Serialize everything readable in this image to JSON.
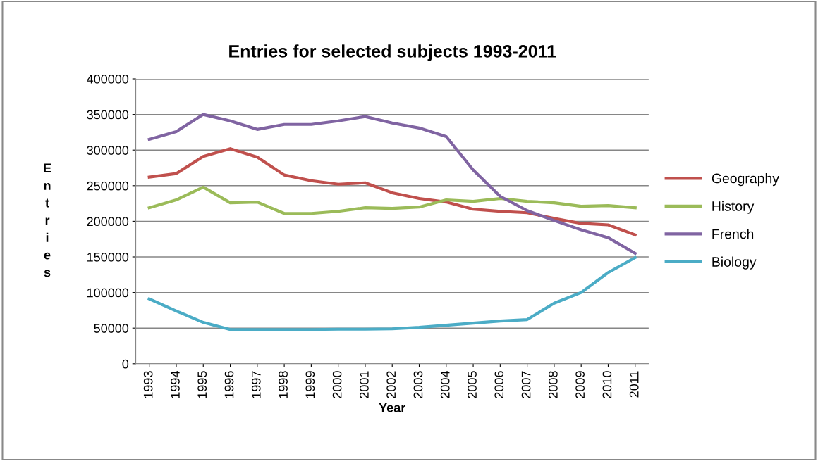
{
  "chart_data": {
    "type": "line",
    "title": "Entries for selected subjects 1993-2011",
    "xlabel": "Year",
    "ylabel": "Entries",
    "categories": [
      "1993",
      "1994",
      "1995",
      "1996",
      "1997",
      "1998",
      "1999",
      "2000",
      "2001",
      "2002",
      "2003",
      "2004",
      "2005",
      "2006",
      "2007",
      "2008",
      "2009",
      "2010",
      "2011"
    ],
    "series": [
      {
        "name": "Geography",
        "color": "#c0504d",
        "values": [
          262000,
          267000,
          291000,
          302000,
          290000,
          265000,
          257000,
          252000,
          254000,
          240000,
          232000,
          227000,
          217000,
          214000,
          212000,
          204000,
          197000,
          195000,
          181000
        ]
      },
      {
        "name": "History",
        "color": "#9bbb59",
        "values": [
          219000,
          230000,
          248000,
          226000,
          227000,
          211000,
          211000,
          214000,
          219000,
          218000,
          220000,
          230000,
          228000,
          232000,
          228000,
          226000,
          221000,
          222000,
          219000
        ]
      },
      {
        "name": "French",
        "color": "#8064a2",
        "values": [
          315000,
          326000,
          350000,
          341000,
          329000,
          336000,
          336000,
          341000,
          347000,
          338000,
          331000,
          319000,
          272000,
          235000,
          215000,
          201000,
          188000,
          177000,
          155000
        ]
      },
      {
        "name": "Biology",
        "color": "#4bacc6",
        "values": [
          91000,
          74000,
          58000,
          48000,
          48000,
          48000,
          48000,
          48500,
          48500,
          49000,
          51000,
          54000,
          57000,
          60000,
          62000,
          85000,
          100000,
          128000,
          149000
        ]
      }
    ],
    "ylim": [
      0,
      400000
    ],
    "yticks": [
      0,
      50000,
      100000,
      150000,
      200000,
      250000,
      300000,
      350000,
      400000
    ],
    "grid": "y",
    "legend": "right",
    "marker": "none",
    "line_style": "solid"
  }
}
